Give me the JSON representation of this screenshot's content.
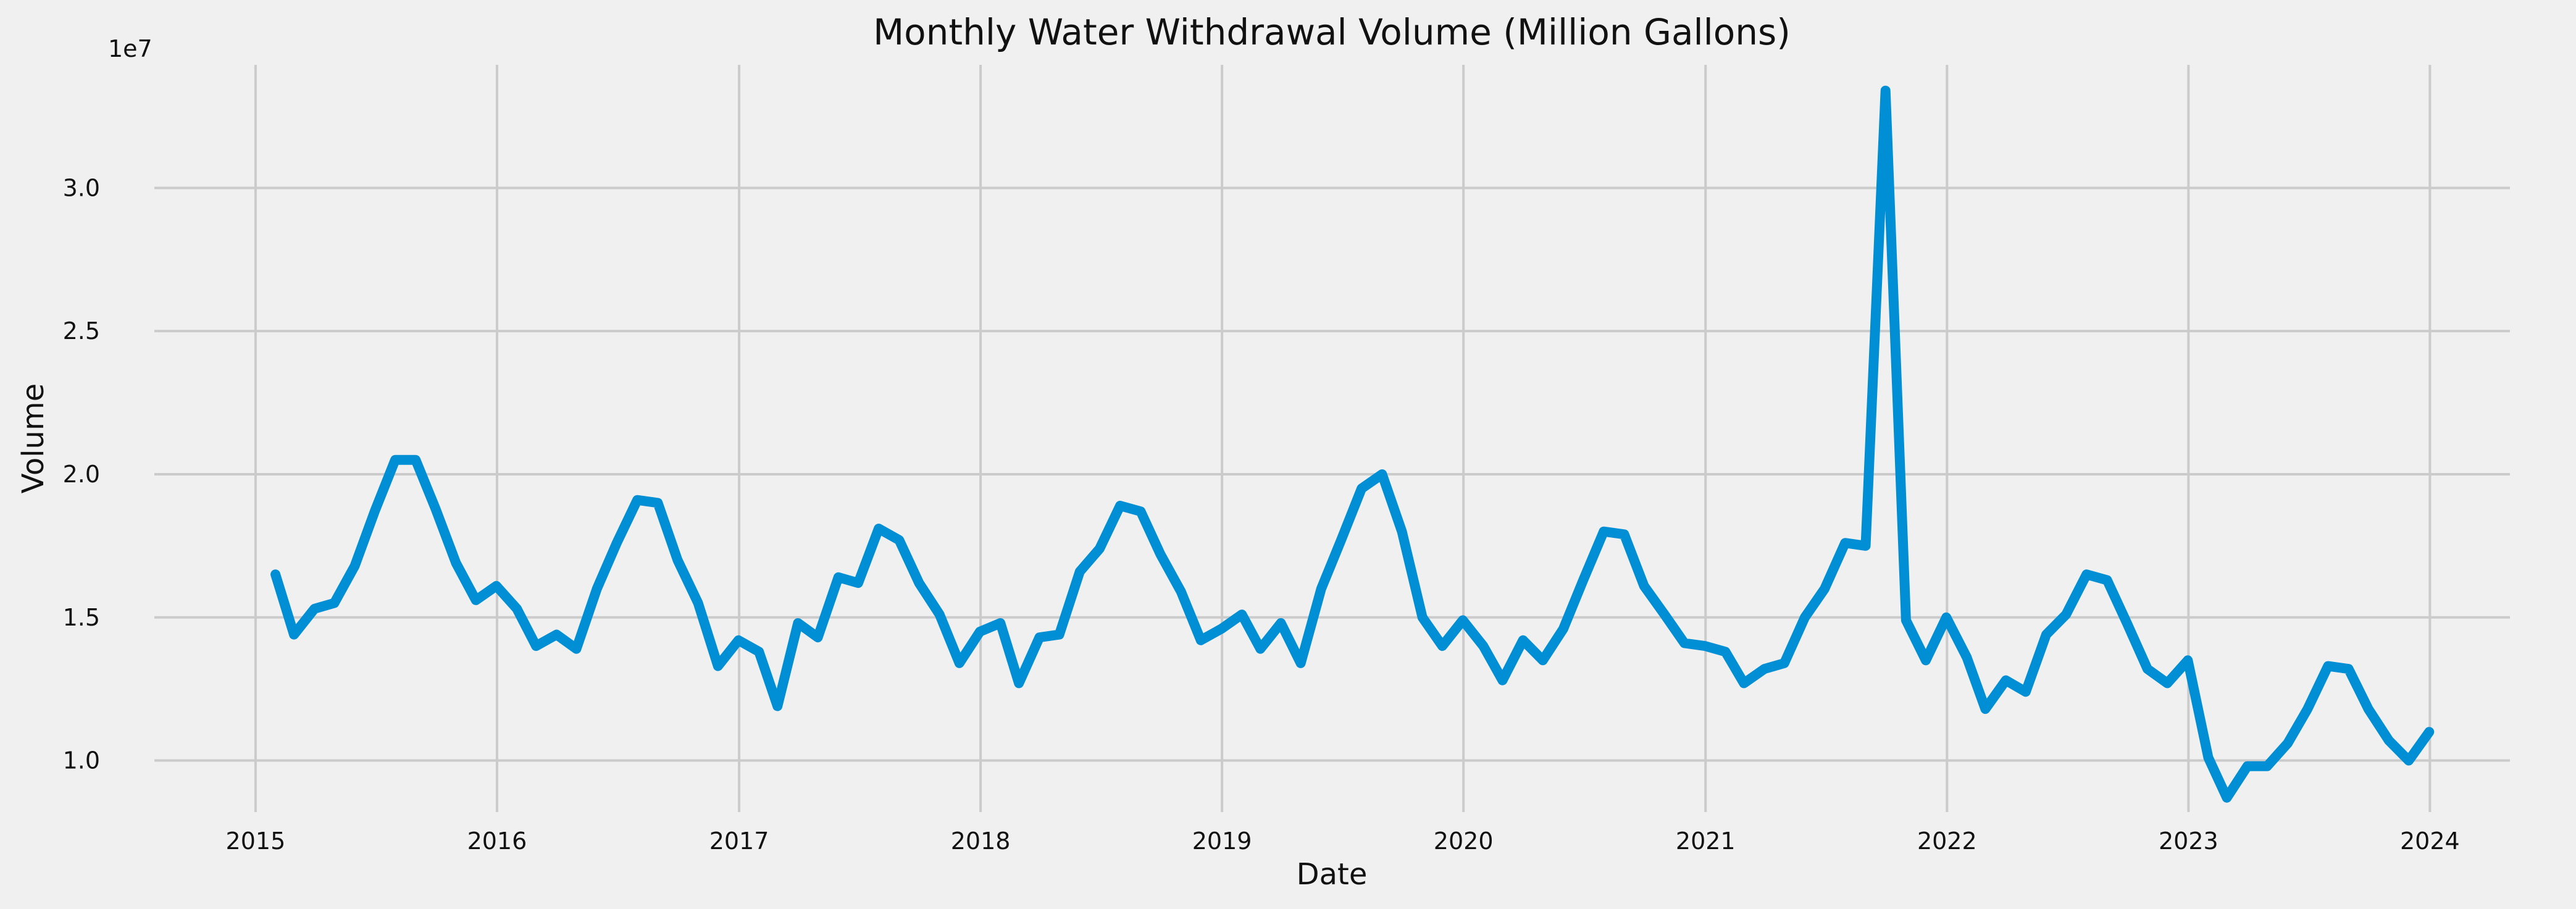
{
  "chart_data": {
    "type": "line",
    "title": "Monthly Water Withdrawal Volume (Million Gallons)",
    "xlabel": "Date",
    "ylabel": "Volume",
    "y_offset_text": "1e7",
    "xlim": [
      "2014-08-01",
      "2024-05-01"
    ],
    "ylim": [
      8200000,
      34300000
    ],
    "x_ticks": [
      "2015-01-01",
      "2016-01-01",
      "2017-01-01",
      "2018-01-01",
      "2019-01-01",
      "2020-01-01",
      "2021-01-01",
      "2022-01-01",
      "2023-01-01",
      "2024-01-01"
    ],
    "x_tick_labels": [
      "2015",
      "2016",
      "2017",
      "2018",
      "2019",
      "2020",
      "2021",
      "2022",
      "2023",
      "2024"
    ],
    "y_ticks": [
      10000000,
      15000000,
      20000000,
      25000000,
      30000000
    ],
    "y_tick_labels": [
      "1.0",
      "1.5",
      "2.0",
      "2.5",
      "3.0"
    ],
    "grid": true,
    "series": [
      {
        "color": "#008fd5",
        "x": [
          "2015-01-31",
          "2015-02-28",
          "2015-03-31",
          "2015-04-30",
          "2015-05-31",
          "2015-06-30",
          "2015-07-31",
          "2015-08-31",
          "2015-09-30",
          "2015-10-31",
          "2015-11-30",
          "2015-12-31",
          "2016-01-31",
          "2016-02-29",
          "2016-03-31",
          "2016-04-30",
          "2016-05-31",
          "2016-06-30",
          "2016-07-31",
          "2016-08-31",
          "2016-09-30",
          "2016-10-31",
          "2016-11-30",
          "2016-12-31",
          "2017-01-31",
          "2017-02-28",
          "2017-03-31",
          "2017-04-30",
          "2017-05-31",
          "2017-06-30",
          "2017-07-31",
          "2017-08-31",
          "2017-09-30",
          "2017-10-31",
          "2017-11-30",
          "2017-12-31",
          "2018-01-31",
          "2018-02-28",
          "2018-03-31",
          "2018-04-30",
          "2018-05-31",
          "2018-06-30",
          "2018-07-31",
          "2018-08-31",
          "2018-09-30",
          "2018-10-31",
          "2018-11-30",
          "2018-12-31",
          "2019-01-31",
          "2019-02-28",
          "2019-03-31",
          "2019-04-30",
          "2019-05-31",
          "2019-06-30",
          "2019-07-31",
          "2019-08-31",
          "2019-09-30",
          "2019-10-31",
          "2019-11-30",
          "2019-12-31",
          "2020-01-31",
          "2020-02-29",
          "2020-03-31",
          "2020-04-30",
          "2020-05-31",
          "2020-06-30",
          "2020-07-31",
          "2020-08-31",
          "2020-09-30",
          "2020-10-31",
          "2020-11-30",
          "2020-12-31",
          "2021-01-31",
          "2021-02-28",
          "2021-03-31",
          "2021-04-30",
          "2021-05-31",
          "2021-06-30",
          "2021-07-31",
          "2021-08-31",
          "2021-09-30",
          "2021-10-31",
          "2021-11-30",
          "2021-12-31",
          "2022-01-31",
          "2022-02-28",
          "2022-03-31",
          "2022-04-30",
          "2022-05-31",
          "2022-06-30",
          "2022-07-31",
          "2022-08-31",
          "2022-09-30",
          "2022-10-31",
          "2022-11-30",
          "2022-12-31",
          "2023-01-31",
          "2023-02-28",
          "2023-03-31",
          "2023-04-30",
          "2023-05-31",
          "2023-06-30",
          "2023-07-31",
          "2023-08-31",
          "2023-09-30",
          "2023-10-31",
          "2023-11-30",
          "2023-12-31"
        ],
        "values": [
          16500000,
          14400000,
          15300000,
          15500000,
          16800000,
          18700000,
          20500000,
          20500000,
          18800000,
          16900000,
          15600000,
          16100000,
          15300000,
          14000000,
          14400000,
          13900000,
          16000000,
          17600000,
          19100000,
          19000000,
          17000000,
          15500000,
          13300000,
          14200000,
          13800000,
          11900000,
          14800000,
          14300000,
          16400000,
          16200000,
          18100000,
          17700000,
          16200000,
          15100000,
          13400000,
          14500000,
          14800000,
          12700000,
          14300000,
          14400000,
          16600000,
          17400000,
          18900000,
          18700000,
          17200000,
          15900000,
          14200000,
          14600000,
          15100000,
          13900000,
          14800000,
          13400000,
          16000000,
          17700000,
          19500000,
          20000000,
          18000000,
          15000000,
          14000000,
          14900000,
          14000000,
          12800000,
          14200000,
          13500000,
          14600000,
          16300000,
          18000000,
          17900000,
          16100000,
          15100000,
          14100000,
          14000000,
          13800000,
          12700000,
          13200000,
          13400000,
          15000000,
          16000000,
          17600000,
          17500000,
          33400000,
          14900000,
          13500000,
          15000000,
          13600000,
          11800000,
          12800000,
          12400000,
          14400000,
          15100000,
          16500000,
          16300000,
          14800000,
          13200000,
          12700000,
          13500000,
          10100000,
          8700000,
          9800000,
          9800000,
          10600000,
          11800000,
          13300000,
          13200000,
          11800000,
          10700000,
          10000000,
          11000000
        ]
      }
    ]
  }
}
